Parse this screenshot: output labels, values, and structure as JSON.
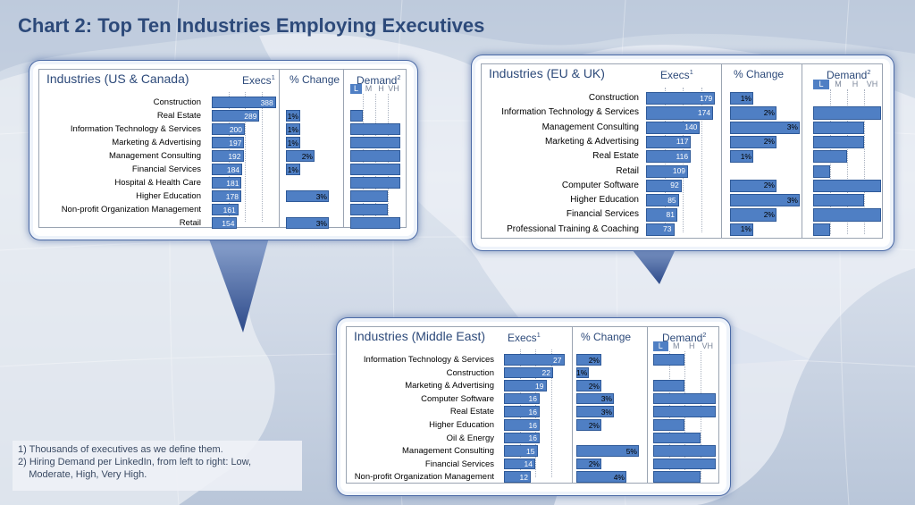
{
  "title": "Chart 2: Top Ten Industries Employing Executives",
  "notes": [
    "1) Thousands of executives  as we define them.",
    "2) Hiring Demand per LinkedIn, from left to right: Low,",
    "    Moderate, High, Very High."
  ],
  "colors": {
    "bar": "#4f7fc4",
    "title": "#2d4a7a"
  },
  "chart_data": [
    {
      "type": "bar",
      "title": "Industries (US & Canada)",
      "columns": [
        "Execs",
        "% Change",
        "Demand"
      ],
      "demand_levels": [
        "L",
        "M",
        "H",
        "VH"
      ],
      "categories": [
        "Construction",
        "Real Estate",
        "Information Technology & Services",
        "Marketing & Advertising",
        "Management Consulting",
        "Financial Services",
        "Hospital & Health Care",
        "Higher Education",
        "Non-profit Organization Management",
        "Retail"
      ],
      "series": [
        {
          "name": "Execs",
          "values": [
            388,
            289,
            200,
            197,
            192,
            184,
            181,
            178,
            161,
            154
          ]
        },
        {
          "name": "% Change",
          "values": [
            null,
            1,
            1,
            1,
            2,
            1,
            null,
            3,
            null,
            3
          ]
        },
        {
          "name": "Demand",
          "values": [
            null,
            1,
            4,
            4,
            4,
            4,
            4,
            3,
            3,
            4
          ]
        }
      ]
    },
    {
      "type": "bar",
      "title": "Industries (EU & UK)",
      "columns": [
        "Execs",
        "% Change",
        "Demand"
      ],
      "demand_levels": [
        "L",
        "M",
        "H",
        "VH"
      ],
      "categories": [
        "Construction",
        "Information Technology & Services",
        "Management Consulting",
        "Marketing & Advertising",
        "Real Estate",
        "Retail",
        "Computer Software",
        "Higher Education",
        "Financial Services",
        "Professional Training & Coaching"
      ],
      "series": [
        {
          "name": "Execs",
          "values": [
            179,
            174,
            140,
            117,
            116,
            109,
            92,
            85,
            81,
            73
          ]
        },
        {
          "name": "% Change",
          "values": [
            1,
            2,
            3,
            2,
            1,
            null,
            2,
            3,
            2,
            1
          ]
        },
        {
          "name": "Demand",
          "values": [
            null,
            4,
            3,
            3,
            2,
            1,
            4,
            3,
            4,
            1
          ]
        }
      ]
    },
    {
      "type": "bar",
      "title": "Industries (Middle East)",
      "columns": [
        "Execs",
        "% Change",
        "Demand"
      ],
      "demand_levels": [
        "L",
        "M",
        "H",
        "VH"
      ],
      "categories": [
        "Information Technology & Services",
        "Construction",
        "Marketing & Advertising",
        "Computer Software",
        "Real Estate",
        "Higher Education",
        "Oil & Energy",
        "Management Consulting",
        "Financial Services",
        "Non-profit Organization Management"
      ],
      "series": [
        {
          "name": "Execs",
          "values": [
            27,
            22,
            19,
            16,
            16,
            16,
            16,
            15,
            14,
            12
          ]
        },
        {
          "name": "% Change",
          "values": [
            2,
            1,
            2,
            3,
            3,
            2,
            null,
            5,
            2,
            4
          ]
        },
        {
          "name": "Demand",
          "values": [
            2,
            null,
            2,
            4,
            4,
            2,
            3,
            4,
            4,
            3
          ]
        }
      ]
    }
  ]
}
